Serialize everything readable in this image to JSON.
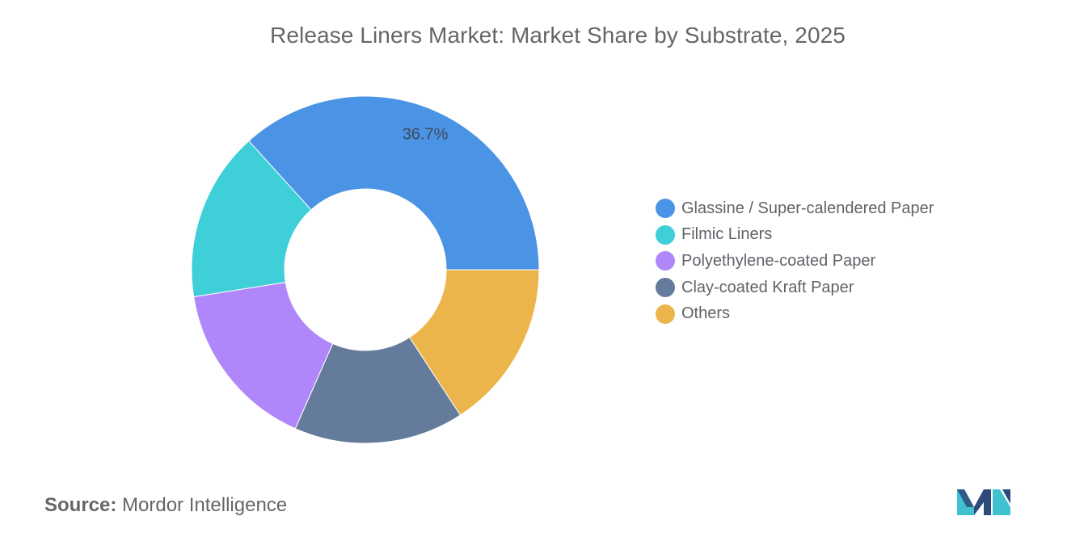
{
  "title": "Release Liners Market: Market Share by Substrate, 2025",
  "source": {
    "label": "Source:",
    "value": "Mordor Intelligence"
  },
  "logo": {
    "icon": "mordor-intelligence-logo-icon",
    "colors": [
      "#2c4a7c",
      "#3fc1d0"
    ]
  },
  "chart_data": {
    "type": "pie",
    "donut": true,
    "title": "Release Liners Market: Market Share by Substrate, 2025",
    "legend_position": "right",
    "categories": [
      "Glassine / Super-calendered Paper",
      "Filmic Liners",
      "Polyethylene-coated Paper",
      "Clay-coated Kraft Paper",
      "Others"
    ],
    "values": [
      36.7,
      15.8,
      15.9,
      15.8,
      15.8
    ],
    "colors": [
      "#4a93e5",
      "#3ecfd8",
      "#b086fb",
      "#657b9b",
      "#ebb54b"
    ],
    "data_labels": [
      "36.7%",
      "",
      "",
      "",
      ""
    ]
  }
}
